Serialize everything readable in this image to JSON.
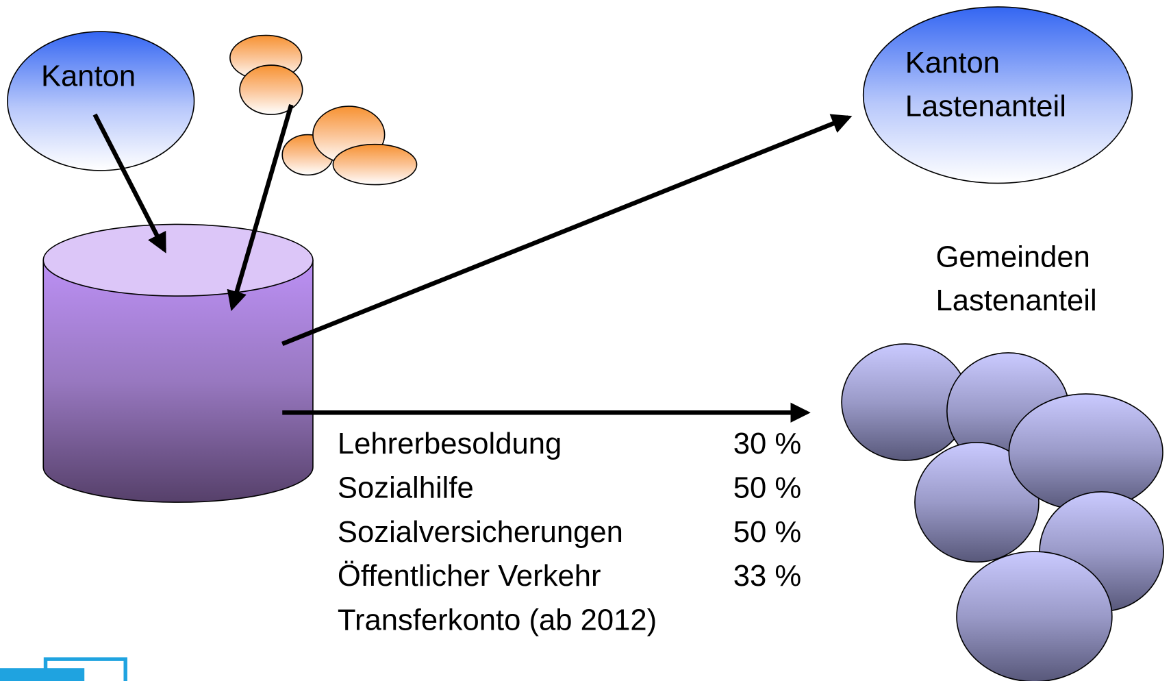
{
  "source": {
    "label": "Kanton"
  },
  "target_kanton": {
    "lines": [
      "Kanton",
      "Lastenanteil"
    ]
  },
  "target_gemeinden": {
    "lines": [
      "Gemeinden",
      "Lastenanteil"
    ]
  },
  "items": [
    {
      "label": "Lehrerbesoldung",
      "share": "30 %"
    },
    {
      "label": "Sozialhilfe",
      "share": "50 %"
    },
    {
      "label": "Sozialversicherungen",
      "share": "50 %"
    },
    {
      "label": "Öffentlicher Verkehr",
      "share": "33 %"
    },
    {
      "label": "Transferkonto (ab 2012)"
    }
  ]
}
